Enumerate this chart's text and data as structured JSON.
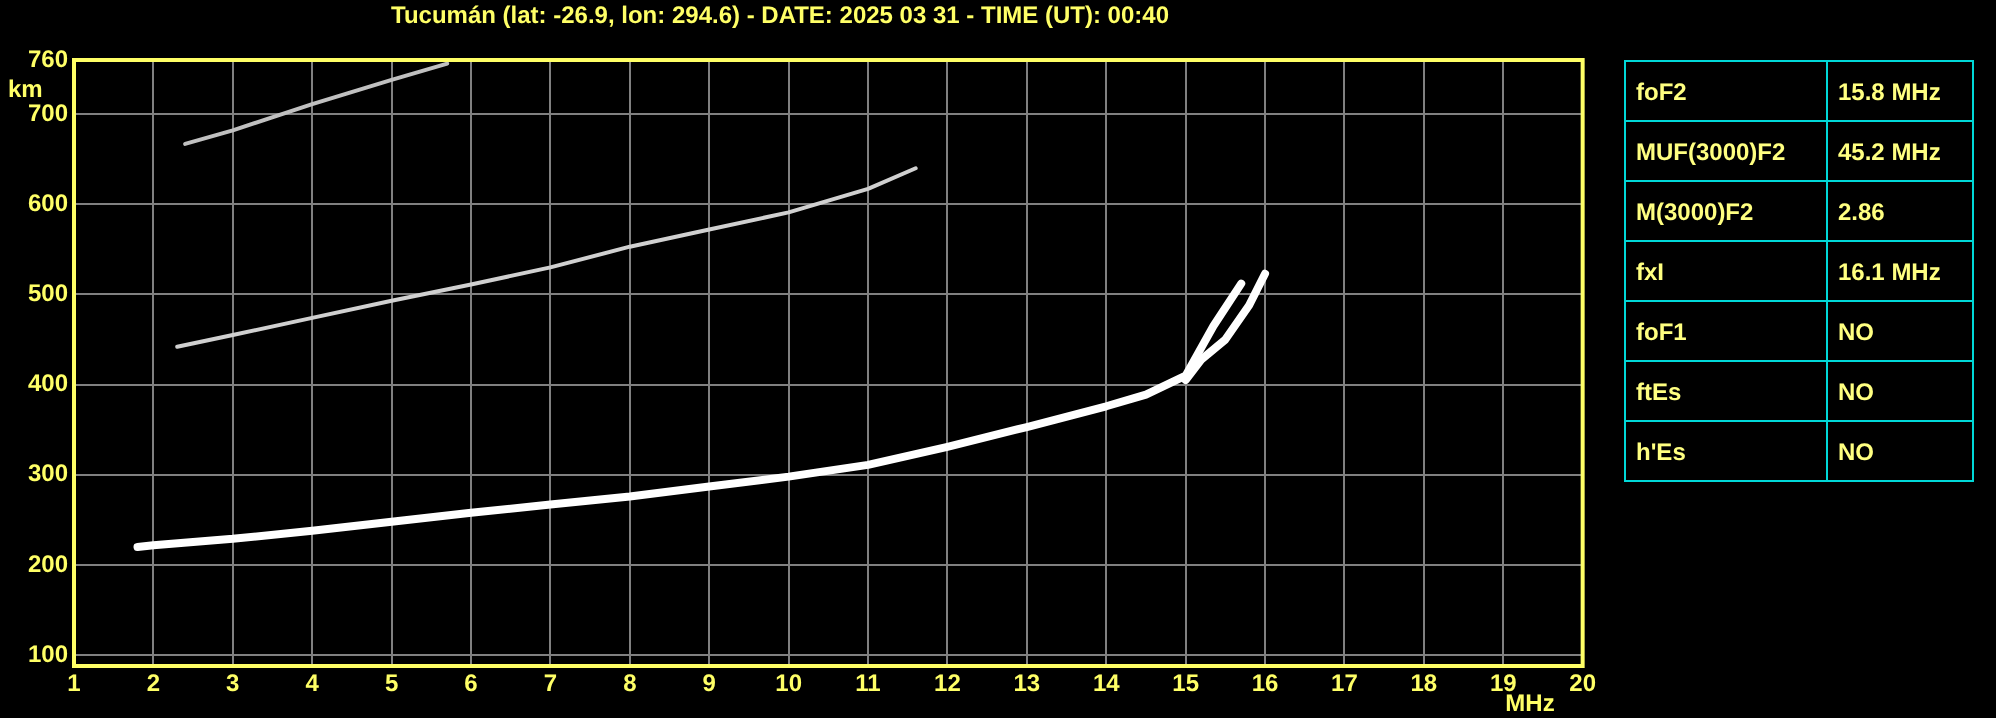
{
  "chart_data": [
    {
      "type": "line",
      "title": "Tucumán (lat: -26.9, lon: 294.6) - DATE: 2025 03 31 - TIME (UT): 00:40",
      "xlabel": "MHz",
      "ylabel": "km",
      "xlim": [
        1,
        20
      ],
      "xticks": [
        1,
        2,
        3,
        4,
        5,
        6,
        7,
        8,
        9,
        10,
        11,
        12,
        13,
        14,
        15,
        16,
        17,
        18,
        19,
        20
      ],
      "ylim": [
        88,
        760
      ],
      "yticks": [
        100,
        200,
        300,
        400,
        500,
        600,
        700,
        760
      ],
      "grid": true,
      "legend": false,
      "marker": "none",
      "line_style": "solid",
      "series": [
        {
          "color": "#ffffff",
          "x": [
            1.8,
            2,
            3,
            4,
            5,
            6,
            7,
            8,
            9,
            10,
            11,
            12,
            13,
            14,
            14.5,
            15,
            15.35,
            15.7
          ],
          "values": [
            220,
            222,
            229,
            238,
            248,
            258,
            267,
            276,
            287,
            298,
            311,
            331,
            353,
            376,
            389,
            410,
            465,
            512
          ]
        },
        {
          "color": "#ffffff",
          "x": [
            15,
            15.2,
            15.5,
            15.8,
            16
          ],
          "values": [
            405,
            428,
            450,
            488,
            523
          ]
        },
        {
          "color": "#d0d0d0",
          "x": [
            2.3,
            3,
            4,
            5,
            6,
            7,
            8,
            9,
            10,
            11,
            11.6
          ],
          "values": [
            442,
            455,
            474,
            493,
            511,
            530,
            553,
            572,
            591,
            617,
            640
          ]
        },
        {
          "color": "#c0c0c0",
          "x": [
            2.4,
            3,
            4,
            5,
            5.7
          ],
          "values": [
            667,
            682,
            711,
            738,
            756
          ]
        }
      ]
    },
    {
      "type": "other",
      "annotations": [
        "foF2",
        "15.8 MHz",
        "MUF(3000)F2",
        "45.2 MHz",
        "M(3000)F2",
        "2.86",
        "fxI",
        "16.1 MHz",
        "foF1",
        "NO",
        "ftEs",
        "NO",
        "h'Es",
        "NO"
      ]
    }
  ]
}
